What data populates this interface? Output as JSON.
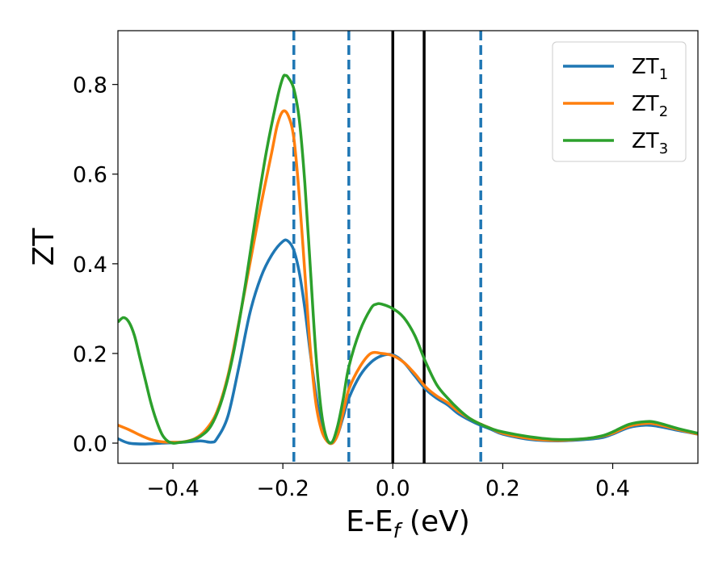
{
  "chart_data": {
    "type": "line",
    "xlabel": "E-E",
    "xlabel_sub": "f",
    "xlabel_unit": " (eV)",
    "ylabel": "ZT",
    "xlim": [
      -0.5,
      0.555
    ],
    "ylim": [
      -0.045,
      0.92
    ],
    "xticks": [
      -0.4,
      -0.2,
      0.0,
      0.2,
      0.4
    ],
    "xtick_labels": [
      "−0.4",
      "−0.2",
      "0.0",
      "0.2",
      "0.4"
    ],
    "yticks": [
      0.0,
      0.2,
      0.4,
      0.6,
      0.8
    ],
    "ytick_labels": [
      "0.0",
      "0.2",
      "0.4",
      "0.6",
      "0.8"
    ],
    "grid": false,
    "legend_position": "top-right",
    "vlines": [
      {
        "x": -0.18,
        "style": "dashed",
        "color": "#1f77b4"
      },
      {
        "x": -0.08,
        "style": "dashed",
        "color": "#1f77b4"
      },
      {
        "x": 0.0,
        "style": "solid",
        "color": "#000000"
      },
      {
        "x": 0.057,
        "style": "solid",
        "color": "#000000"
      },
      {
        "x": 0.16,
        "style": "dashed",
        "color": "#1f77b4"
      }
    ],
    "series": [
      {
        "name": "ZT",
        "name_sub": "1",
        "color": "#1f77b4",
        "points": [
          [
            -0.5,
            0.01
          ],
          [
            -0.48,
            0.0
          ],
          [
            -0.45,
            -0.002
          ],
          [
            -0.42,
            0.0
          ],
          [
            -0.38,
            0.002
          ],
          [
            -0.35,
            0.005
          ],
          [
            -0.33,
            0.002
          ],
          [
            -0.32,
            0.01
          ],
          [
            -0.3,
            0.06
          ],
          [
            -0.28,
            0.17
          ],
          [
            -0.26,
            0.29
          ],
          [
            -0.24,
            0.37
          ],
          [
            -0.22,
            0.42
          ],
          [
            -0.2,
            0.45
          ],
          [
            -0.19,
            0.45
          ],
          [
            -0.18,
            0.43
          ],
          [
            -0.17,
            0.38
          ],
          [
            -0.16,
            0.3
          ],
          [
            -0.15,
            0.2
          ],
          [
            -0.14,
            0.11
          ],
          [
            -0.13,
            0.04
          ],
          [
            -0.12,
            0.008
          ],
          [
            -0.11,
            0.0
          ],
          [
            -0.1,
            0.02
          ],
          [
            -0.09,
            0.06
          ],
          [
            -0.08,
            0.1
          ],
          [
            -0.06,
            0.15
          ],
          [
            -0.04,
            0.18
          ],
          [
            -0.02,
            0.195
          ],
          [
            0.0,
            0.197
          ],
          [
            0.02,
            0.18
          ],
          [
            0.04,
            0.15
          ],
          [
            0.06,
            0.12
          ],
          [
            0.08,
            0.1
          ],
          [
            0.1,
            0.085
          ],
          [
            0.12,
            0.065
          ],
          [
            0.15,
            0.045
          ],
          [
            0.18,
            0.03
          ],
          [
            0.2,
            0.02
          ],
          [
            0.25,
            0.008
          ],
          [
            0.3,
            0.005
          ],
          [
            0.35,
            0.008
          ],
          [
            0.38,
            0.012
          ],
          [
            0.4,
            0.02
          ],
          [
            0.43,
            0.035
          ],
          [
            0.46,
            0.04
          ],
          [
            0.48,
            0.038
          ],
          [
            0.52,
            0.028
          ],
          [
            0.555,
            0.02
          ]
        ]
      },
      {
        "name": "ZT",
        "name_sub": "2",
        "color": "#ff7f0e",
        "points": [
          [
            -0.5,
            0.04
          ],
          [
            -0.48,
            0.03
          ],
          [
            -0.46,
            0.018
          ],
          [
            -0.44,
            0.008
          ],
          [
            -0.42,
            0.003
          ],
          [
            -0.4,
            0.002
          ],
          [
            -0.38,
            0.003
          ],
          [
            -0.36,
            0.01
          ],
          [
            -0.34,
            0.03
          ],
          [
            -0.32,
            0.07
          ],
          [
            -0.3,
            0.15
          ],
          [
            -0.28,
            0.27
          ],
          [
            -0.26,
            0.4
          ],
          [
            -0.24,
            0.53
          ],
          [
            -0.22,
            0.65
          ],
          [
            -0.21,
            0.71
          ],
          [
            -0.2,
            0.74
          ],
          [
            -0.19,
            0.73
          ],
          [
            -0.18,
            0.68
          ],
          [
            -0.17,
            0.55
          ],
          [
            -0.16,
            0.38
          ],
          [
            -0.15,
            0.21
          ],
          [
            -0.14,
            0.09
          ],
          [
            -0.13,
            0.03
          ],
          [
            -0.12,
            0.005
          ],
          [
            -0.11,
            0.0
          ],
          [
            -0.1,
            0.02
          ],
          [
            -0.09,
            0.07
          ],
          [
            -0.08,
            0.12
          ],
          [
            -0.06,
            0.17
          ],
          [
            -0.04,
            0.2
          ],
          [
            -0.02,
            0.2
          ],
          [
            0.0,
            0.195
          ],
          [
            0.02,
            0.18
          ],
          [
            0.04,
            0.155
          ],
          [
            0.06,
            0.125
          ],
          [
            0.08,
            0.105
          ],
          [
            0.1,
            0.09
          ],
          [
            0.12,
            0.07
          ],
          [
            0.15,
            0.048
          ],
          [
            0.18,
            0.032
          ],
          [
            0.2,
            0.022
          ],
          [
            0.25,
            0.01
          ],
          [
            0.3,
            0.006
          ],
          [
            0.35,
            0.01
          ],
          [
            0.38,
            0.015
          ],
          [
            0.4,
            0.022
          ],
          [
            0.43,
            0.038
          ],
          [
            0.46,
            0.044
          ],
          [
            0.48,
            0.042
          ],
          [
            0.52,
            0.03
          ],
          [
            0.555,
            0.02
          ]
        ]
      },
      {
        "name": "ZT",
        "name_sub": "3",
        "color": "#2ca02c",
        "points": [
          [
            -0.5,
            0.27
          ],
          [
            -0.49,
            0.28
          ],
          [
            -0.48,
            0.27
          ],
          [
            -0.47,
            0.24
          ],
          [
            -0.46,
            0.19
          ],
          [
            -0.45,
            0.14
          ],
          [
            -0.44,
            0.09
          ],
          [
            -0.43,
            0.05
          ],
          [
            -0.42,
            0.02
          ],
          [
            -0.41,
            0.005
          ],
          [
            -0.4,
            0.0
          ],
          [
            -0.39,
            0.001
          ],
          [
            -0.37,
            0.005
          ],
          [
            -0.35,
            0.015
          ],
          [
            -0.33,
            0.04
          ],
          [
            -0.31,
            0.1
          ],
          [
            -0.29,
            0.2
          ],
          [
            -0.27,
            0.34
          ],
          [
            -0.25,
            0.5
          ],
          [
            -0.23,
            0.65
          ],
          [
            -0.21,
            0.77
          ],
          [
            -0.2,
            0.815
          ],
          [
            -0.195,
            0.82
          ],
          [
            -0.19,
            0.815
          ],
          [
            -0.18,
            0.79
          ],
          [
            -0.17,
            0.72
          ],
          [
            -0.16,
            0.58
          ],
          [
            -0.15,
            0.39
          ],
          [
            -0.14,
            0.2
          ],
          [
            -0.13,
            0.07
          ],
          [
            -0.12,
            0.01
          ],
          [
            -0.11,
            0.003
          ],
          [
            -0.1,
            0.04
          ],
          [
            -0.09,
            0.1
          ],
          [
            -0.08,
            0.17
          ],
          [
            -0.06,
            0.25
          ],
          [
            -0.04,
            0.3
          ],
          [
            -0.03,
            0.31
          ],
          [
            -0.02,
            0.31
          ],
          [
            0.0,
            0.3
          ],
          [
            0.02,
            0.28
          ],
          [
            0.04,
            0.24
          ],
          [
            0.06,
            0.18
          ],
          [
            0.08,
            0.13
          ],
          [
            0.1,
            0.1
          ],
          [
            0.12,
            0.075
          ],
          [
            0.14,
            0.055
          ],
          [
            0.16,
            0.042
          ],
          [
            0.18,
            0.032
          ],
          [
            0.2,
            0.025
          ],
          [
            0.25,
            0.014
          ],
          [
            0.3,
            0.008
          ],
          [
            0.35,
            0.01
          ],
          [
            0.38,
            0.016
          ],
          [
            0.4,
            0.025
          ],
          [
            0.43,
            0.042
          ],
          [
            0.46,
            0.048
          ],
          [
            0.48,
            0.046
          ],
          [
            0.52,
            0.032
          ],
          [
            0.555,
            0.022
          ]
        ]
      }
    ]
  }
}
